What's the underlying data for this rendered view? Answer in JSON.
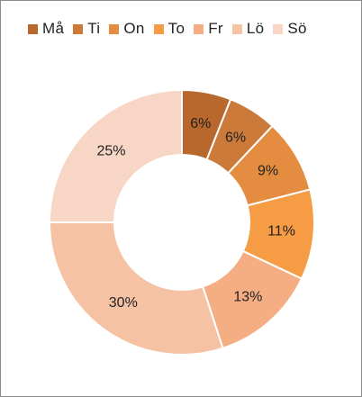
{
  "chart_data": {
    "type": "pie",
    "subtype": "donut",
    "title": "",
    "legend_position": "top",
    "categories": [
      "Må",
      "Ti",
      "On",
      "To",
      "Fr",
      "Lö",
      "Sö"
    ],
    "values": [
      6,
      6,
      9,
      11,
      13,
      30,
      25
    ],
    "data_labels": [
      "6%",
      "6%",
      "9%",
      "11%",
      "13%",
      "30%",
      "25%"
    ],
    "colors": [
      "#b8672d",
      "#cc7a3a",
      "#e48c3f",
      "#f59c45",
      "#f5ad84",
      "#f6c2a4",
      "#f8d6c5"
    ]
  }
}
